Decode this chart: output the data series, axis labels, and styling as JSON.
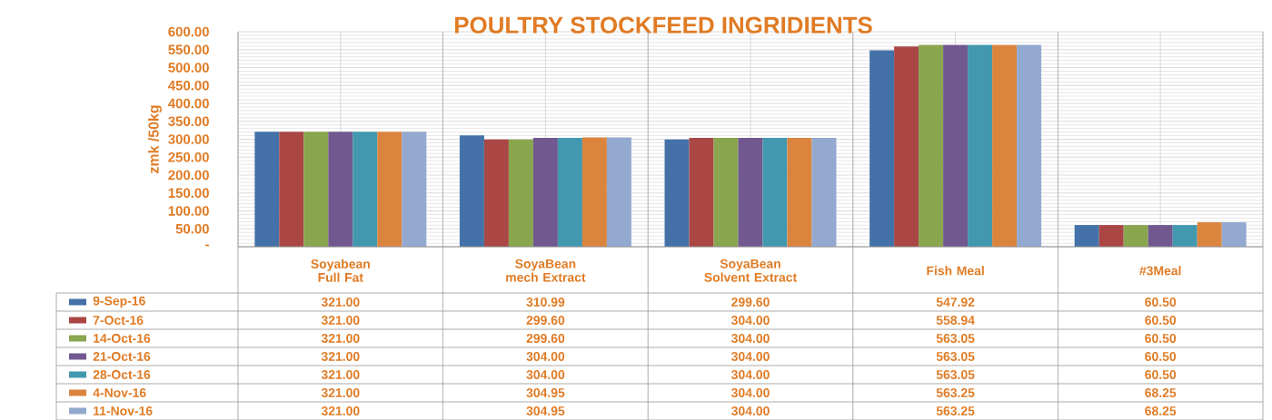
{
  "chart_data": {
    "type": "bar",
    "title": "POULTRY STOCKFEED INGRIDIENTS",
    "ylabel": "zmk /50kg",
    "categories": [
      "Soyabean Full Fat",
      "SoyaBean mech Extract",
      "SoyaBean Solvent Extract",
      "Fish Meal",
      "#3Meal"
    ],
    "series": [
      {
        "name": "9-Sep-16",
        "color": "#4472a8",
        "values": [
          321.0,
          310.99,
          299.6,
          547.92,
          60.5
        ],
        "value_labels": [
          "321.00",
          "310.99",
          "299.60",
          "547.92",
          "60.50"
        ]
      },
      {
        "name": "7-Oct-16",
        "color": "#aa4644",
        "values": [
          321.0,
          299.6,
          304.0,
          558.94,
          60.5
        ],
        "value_labels": [
          "321.00",
          "299.60",
          "304.00",
          "558.94",
          "60.50"
        ]
      },
      {
        "name": "14-Oct-16",
        "color": "#89a54e",
        "values": [
          321.0,
          299.6,
          304.0,
          563.05,
          60.5
        ],
        "value_labels": [
          "321.00",
          "299.60",
          "304.00",
          "563.05",
          "60.50"
        ]
      },
      {
        "name": "21-Oct-16",
        "color": "#71588f",
        "values": [
          321.0,
          304.0,
          304.0,
          563.05,
          60.5
        ],
        "value_labels": [
          "321.00",
          "304.00",
          "304.00",
          "563.05",
          "60.50"
        ]
      },
      {
        "name": "28-Oct-16",
        "color": "#4198af",
        "values": [
          321.0,
          304.0,
          304.0,
          563.05,
          60.5
        ],
        "value_labels": [
          "321.00",
          "304.00",
          "304.00",
          "563.05",
          "60.50"
        ]
      },
      {
        "name": "4-Nov-16",
        "color": "#db843d",
        "values": [
          321.0,
          304.95,
          304.0,
          563.25,
          68.25
        ],
        "value_labels": [
          "321.00",
          "304.95",
          "304.00",
          "563.25",
          "68.25"
        ]
      },
      {
        "name": "11-Nov-16",
        "color": "#93a9cf",
        "values": [
          321.0,
          304.95,
          304.0,
          563.25,
          68.25
        ],
        "value_labels": [
          "321.00",
          "304.95",
          "304.00",
          "563.25",
          "68.25"
        ]
      }
    ],
    "ylim": [
      0,
      600
    ],
    "yticks": [
      {
        "value": 0,
        "label": "-"
      },
      {
        "value": 50,
        "label": "50.00"
      },
      {
        "value": 100,
        "label": "100.00"
      },
      {
        "value": 150,
        "label": "150.00"
      },
      {
        "value": 200,
        "label": "200.00"
      },
      {
        "value": 250,
        "label": "250.00"
      },
      {
        "value": 300,
        "label": "300.00"
      },
      {
        "value": 350,
        "label": "350.00"
      },
      {
        "value": 400,
        "label": "400.00"
      },
      {
        "value": 450,
        "label": "450.00"
      },
      {
        "value": 500,
        "label": "500.00"
      },
      {
        "value": 550,
        "label": "550.00"
      },
      {
        "value": 600,
        "label": "600.00"
      }
    ],
    "grid": true,
    "legend": "bottom left"
  }
}
